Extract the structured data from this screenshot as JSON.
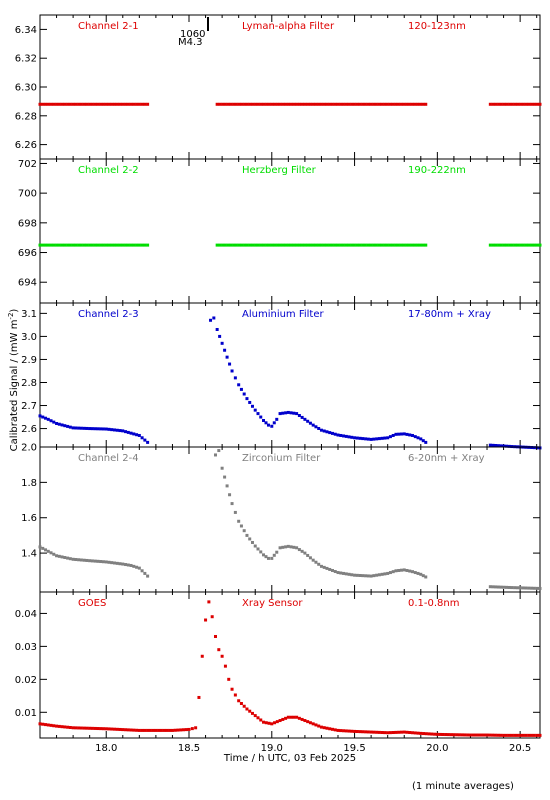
{
  "figure": {
    "xlabel": "Time / h UTC, 03 Feb 2025",
    "ylabel": "Calibrated Signal / (mW m",
    "ylabel_sup": "-2",
    "ylabel_end": ")",
    "footnote": "(1 minute averages)",
    "flare_label_top": "1060",
    "flare_label_bottom": "M4.3"
  },
  "chart_data": [
    {
      "type": "scatter",
      "panel": "Channel 2-1",
      "labels": [
        "Channel 2-1",
        "Lyman-alpha Filter",
        "120-123nm"
      ],
      "color": "#dd0000",
      "xlim": [
        17.6,
        20.62
      ],
      "ylim": [
        6.25,
        6.35
      ],
      "xticks": [
        18.0,
        18.5,
        19.0,
        19.5,
        20.0,
        20.5
      ],
      "xtick_labels": [
        "18.0",
        "18.5",
        "19.0",
        "19.5",
        "20.0",
        "20.5"
      ],
      "yticks": [
        6.26,
        6.28,
        6.3,
        6.32,
        6.34
      ],
      "ytick_labels": [
        "6.26",
        "6.28",
        "6.30",
        "6.32",
        "6.34"
      ],
      "series": [
        {
          "segments": [
            {
              "x": [
                17.6,
                18.25
              ],
              "y": [
                6.288,
                6.288
              ]
            },
            {
              "x": [
                18.67,
                19.93
              ],
              "y": [
                6.288,
                6.288
              ]
            },
            {
              "x": [
                20.32,
                20.62
              ],
              "y": [
                6.288,
                6.288
              ]
            }
          ]
        }
      ]
    },
    {
      "type": "scatter",
      "panel": "Channel 2-2",
      "labels": [
        "Channel 2-2",
        "Herzberg Filter",
        "190-222nm"
      ],
      "color": "#00dd00",
      "xlim": [
        17.6,
        20.62
      ],
      "ylim": [
        692.6,
        702.3
      ],
      "xticks": [
        18.0,
        18.5,
        19.0,
        19.5,
        20.0,
        20.5
      ],
      "xtick_labels": [
        "18.0",
        "18.5",
        "19.0",
        "19.5",
        "20.0",
        "20.5"
      ],
      "yticks": [
        694,
        696,
        698,
        700,
        702
      ],
      "ytick_labels": [
        "694",
        "696",
        "698",
        "700",
        "702"
      ],
      "series": [
        {
          "segments": [
            {
              "x": [
                17.6,
                18.25
              ],
              "y": [
                696.5,
                696.5
              ]
            },
            {
              "x": [
                18.67,
                19.93
              ],
              "y": [
                696.5,
                696.5
              ]
            },
            {
              "x": [
                20.32,
                20.62
              ],
              "y": [
                696.5,
                696.5
              ]
            }
          ]
        }
      ]
    },
    {
      "type": "scatter",
      "panel": "Channel 2-3",
      "labels": [
        "Channel 2-3",
        "Aluminium Filter",
        "17-80nm + Xray"
      ],
      "color": "#0000cc",
      "xlim": [
        17.6,
        20.62
      ],
      "ylim": [
        2.52,
        3.145
      ],
      "xticks": [
        18.0,
        18.5,
        19.0,
        19.5,
        20.0,
        20.5
      ],
      "xtick_labels": [
        "18.0",
        "18.5",
        "19.0",
        "19.5",
        "20.0",
        "20.5"
      ],
      "yticks": [
        2.6,
        2.7,
        2.8,
        2.9,
        3.0,
        3.1
      ],
      "ytick_labels": [
        "2.6",
        "2.7",
        "2.8",
        "2.9",
        "3.0",
        "3.1"
      ],
      "series": [
        {
          "segments": [
            {
              "x": [
                17.6,
                17.65,
                17.7,
                17.8,
                17.9,
                18.0,
                18.1,
                18.15,
                18.2,
                18.25
              ],
              "y": [
                2.655,
                2.64,
                2.622,
                2.603,
                2.6,
                2.598,
                2.59,
                2.58,
                2.57,
                2.54
              ]
            },
            {
              "x": [
                18.63,
                18.65,
                18.67,
                18.7,
                18.73,
                18.76,
                18.8,
                18.85,
                18.9,
                18.95,
                18.98,
                19.0,
                19.03,
                19.05,
                19.1,
                19.15,
                19.2,
                19.25,
                19.3,
                19.4,
                19.5,
                19.6,
                19.7,
                19.75,
                19.8,
                19.85,
                19.9,
                19.93
              ],
              "y": [
                3.07,
                3.08,
                3.03,
                2.97,
                2.91,
                2.85,
                2.79,
                2.73,
                2.68,
                2.635,
                2.615,
                2.61,
                2.64,
                2.665,
                2.67,
                2.665,
                2.64,
                2.615,
                2.593,
                2.572,
                2.56,
                2.553,
                2.56,
                2.575,
                2.577,
                2.57,
                2.555,
                2.54
              ]
            },
            {
              "x": [
                20.32,
                20.45,
                20.62
              ],
              "y": [
                2.528,
                2.522,
                2.516
              ]
            }
          ]
        }
      ]
    },
    {
      "type": "scatter",
      "panel": "Channel 2-4",
      "labels": [
        "Channel 2-4",
        "Zirconium Filter",
        "6-20nm + Xray"
      ],
      "color": "#808080",
      "xlim": [
        17.6,
        20.62
      ],
      "ylim": [
        1.18,
        2.0
      ],
      "xticks": [
        18.0,
        18.5,
        19.0,
        19.5,
        20.0,
        20.5
      ],
      "xtick_labels": [
        "18.0",
        "18.5",
        "19.0",
        "19.5",
        "20.0",
        "20.5"
      ],
      "yticks": [
        1.4,
        1.6,
        1.8,
        2.0
      ],
      "ytick_labels": [
        "1.4",
        "1.6",
        "1.8",
        "2.0"
      ],
      "series": [
        {
          "segments": [
            {
              "x": [
                17.6,
                17.65,
                17.7,
                17.8,
                17.9,
                18.0,
                18.1,
                18.15,
                18.2,
                18.25
              ],
              "y": [
                1.435,
                1.41,
                1.385,
                1.365,
                1.357,
                1.35,
                1.338,
                1.33,
                1.315,
                1.27
              ]
            },
            {
              "x": [
                18.66,
                18.68,
                18.7,
                18.73,
                18.76,
                18.8,
                18.85,
                18.9,
                18.95,
                18.98,
                19.0,
                19.03,
                19.05,
                19.1,
                19.15,
                19.2,
                19.25,
                19.3,
                19.4,
                19.5,
                19.6,
                19.7,
                19.75,
                19.8,
                19.85,
                19.9,
                19.93
              ],
              "y": [
                1.955,
                1.98,
                1.88,
                1.78,
                1.68,
                1.58,
                1.5,
                1.44,
                1.39,
                1.37,
                1.37,
                1.405,
                1.43,
                1.438,
                1.43,
                1.4,
                1.36,
                1.325,
                1.29,
                1.275,
                1.27,
                1.285,
                1.3,
                1.305,
                1.295,
                1.28,
                1.265
              ]
            },
            {
              "x": [
                20.32,
                20.45,
                20.62
              ],
              "y": [
                1.21,
                1.205,
                1.2
              ]
            }
          ]
        }
      ]
    },
    {
      "type": "scatter",
      "panel": "GOES",
      "labels": [
        "GOES",
        "Xray Sensor",
        "0.1-0.8nm"
      ],
      "color": "#dd0000",
      "xlim": [
        17.6,
        20.62
      ],
      "ylim": [
        0.0022,
        0.0465
      ],
      "xticks": [
        18.0,
        18.5,
        19.0,
        19.5,
        20.0,
        20.5
      ],
      "xtick_labels": [
        "18.0",
        "18.5",
        "19.0",
        "19.5",
        "20.0",
        "20.5"
      ],
      "yticks": [
        0.01,
        0.02,
        0.03,
        0.04
      ],
      "ytick_labels": [
        "0.01",
        "0.02",
        "0.03",
        "0.04"
      ],
      "series": [
        {
          "segments": [
            {
              "x": [
                17.6,
                17.7,
                17.8,
                18.0,
                18.2,
                18.3,
                18.4,
                18.5,
                18.54
              ],
              "y": [
                0.0065,
                0.0058,
                0.0053,
                0.005,
                0.0045,
                0.0045,
                0.0045,
                0.0048,
                0.0053
              ]
            },
            {
              "x": [
                18.56,
                18.58,
                18.6,
                18.62,
                18.64,
                18.66,
                18.68,
                18.7,
                18.72,
                18.74,
                18.76,
                18.8,
                18.85,
                18.9,
                18.95,
                19.0,
                19.05,
                19.1,
                19.15,
                19.2,
                19.3,
                19.4,
                19.5,
                19.6,
                19.7,
                19.8,
                19.9,
                20.0,
                20.1,
                20.2,
                20.3,
                20.4,
                20.5,
                20.62
              ],
              "y": [
                0.0145,
                0.027,
                0.038,
                0.0435,
                0.039,
                0.033,
                0.029,
                0.027,
                0.024,
                0.02,
                0.017,
                0.0135,
                0.011,
                0.009,
                0.007,
                0.0065,
                0.0075,
                0.0085,
                0.0085,
                0.0075,
                0.0055,
                0.0045,
                0.0042,
                0.004,
                0.0038,
                0.004,
                0.0036,
                0.0033,
                0.0032,
                0.0031,
                0.0031,
                0.003,
                0.003,
                0.003
              ]
            }
          ]
        }
      ]
    }
  ]
}
